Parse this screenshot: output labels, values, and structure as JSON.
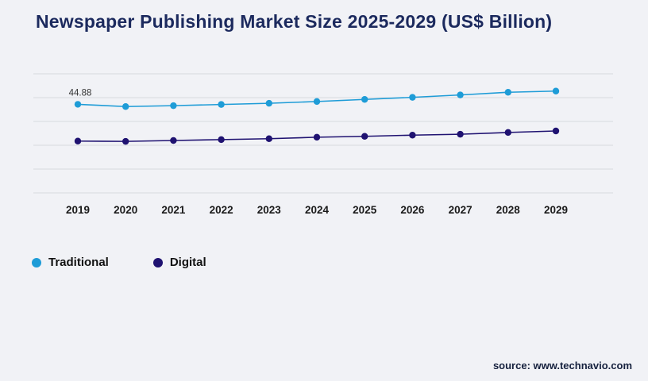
{
  "title": "Newspaper Publishing Market Size 2025-2029 (US$ Billion)",
  "source": "source: www.technavio.com",
  "colors": {
    "title": "#1c2a5e",
    "grid": "#d8dade",
    "background": "#f1f2f6",
    "traditional": "#1e9cd7",
    "digital": "#1f1271"
  },
  "chart_data": {
    "type": "line",
    "title": "Newspaper Publishing Market Size 2025-2029 (US$ Billion)",
    "categories": [
      "2019",
      "2020",
      "2021",
      "2022",
      "2023",
      "2024",
      "2025",
      "2026",
      "2027",
      "2028",
      "2029"
    ],
    "series": [
      {
        "name": "Traditional",
        "color": "#1e9cd7",
        "values": [
          44.88,
          44.5,
          44.65,
          44.85,
          45.05,
          45.35,
          45.7,
          46.05,
          46.45,
          46.9,
          47.1
        ]
      },
      {
        "name": "Digital",
        "color": "#1f1271",
        "values": [
          38.7,
          38.65,
          38.8,
          38.95,
          39.1,
          39.35,
          39.5,
          39.7,
          39.85,
          40.15,
          40.4
        ]
      }
    ],
    "xlabel": "",
    "ylabel": "",
    "ylim": [
      30,
      50
    ],
    "grid": "horizontal",
    "gridline_count": 6,
    "legend_position": "bottom-left",
    "point_label": {
      "series_index": 0,
      "point_index": 0,
      "text": "44.88"
    }
  }
}
